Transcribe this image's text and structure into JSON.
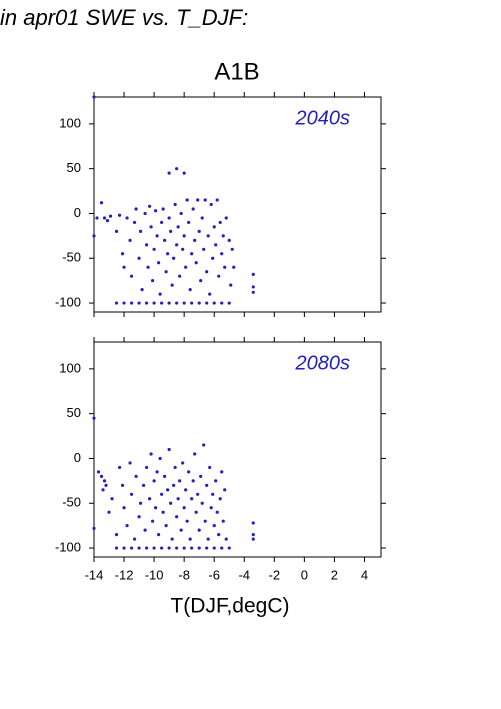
{
  "header": "in apr01 SWE vs. T_DJF:",
  "chart_data": [
    {
      "type": "scatter",
      "title": "A1B",
      "annotation": "2040s",
      "color": "#2222bb",
      "xlim": [
        -14,
        5.1
      ],
      "ylim": [
        -110,
        130
      ],
      "xticks": [
        -14,
        -12,
        -10,
        -8,
        -6,
        -4,
        -2,
        0,
        2,
        4
      ],
      "xtick_labels": false,
      "yticks": [
        -100,
        -50,
        0,
        50,
        100
      ],
      "x": [
        -14,
        -13.8,
        -14,
        -13.5,
        -13.3,
        -13.1,
        -12.9,
        -12.5,
        -12.3,
        -12.1,
        -12,
        -11.8,
        -11.6,
        -11.5,
        -11.3,
        -11.2,
        -11,
        -10.9,
        -10.8,
        -10.6,
        -10.5,
        -10.4,
        -10.3,
        -10.2,
        -10.1,
        -10,
        -9.9,
        -9.8,
        -9.7,
        -9.6,
        -9.5,
        -9.4,
        -9.3,
        -9.2,
        -9.1,
        -9,
        -9,
        -8.9,
        -8.8,
        -8.7,
        -8.6,
        -8.5,
        -8.5,
        -8.4,
        -8.3,
        -8.2,
        -8.1,
        -8,
        -8,
        -7.9,
        -7.8,
        -7.7,
        -7.6,
        -7.5,
        -7.4,
        -7.3,
        -7.2,
        -7.1,
        -7,
        -6.9,
        -6.8,
        -6.7,
        -6.6,
        -6.5,
        -6.4,
        -6.3,
        -6.2,
        -6.1,
        -6,
        -5.9,
        -5.8,
        -5.7,
        -5.6,
        -5.5,
        -5.4,
        -5.3,
        -5.2,
        -5,
        -4.9,
        -4.8,
        -4.7,
        -3.4,
        -3.4,
        -3.4,
        -12.5,
        -12,
        -11.5,
        -11,
        -10.5,
        -10,
        -9.5,
        -9,
        -8.5,
        -8,
        -7.5,
        -7,
        -6.5,
        -6,
        -5.5,
        -5
      ],
      "values": [
        130,
        -5,
        -25,
        12,
        -5,
        -8,
        -3,
        -20,
        -2,
        -45,
        -60,
        -5,
        -30,
        -70,
        -10,
        5,
        -50,
        -20,
        -85,
        0,
        -35,
        -60,
        8,
        -15,
        -75,
        -40,
        3,
        -25,
        -55,
        -90,
        -10,
        5,
        -30,
        -65,
        -45,
        45,
        -5,
        -20,
        -80,
        -50,
        10,
        50,
        -35,
        -15,
        -70,
        0,
        -40,
        45,
        -25,
        -60,
        15,
        -10,
        -85,
        -45,
        5,
        -30,
        -55,
        15,
        -20,
        -75,
        -5,
        -40,
        15,
        -65,
        -25,
        -90,
        10,
        -50,
        -15,
        -35,
        15,
        -70,
        -10,
        -45,
        -25,
        -60,
        -5,
        -30,
        -80,
        -40,
        -60,
        -68,
        -82,
        -88,
        -100,
        -100,
        -100,
        -100,
        -100,
        -100,
        -100,
        -100,
        -100,
        -100,
        -100,
        -100,
        -100,
        -100,
        -100,
        -100
      ]
    },
    {
      "type": "scatter",
      "annotation": "2080s",
      "color": "#2222bb",
      "xlabel": "T(DJF,degC)",
      "xlim": [
        -14,
        5.1
      ],
      "ylim": [
        -110,
        130
      ],
      "xticks": [
        -14,
        -12,
        -10,
        -8,
        -6,
        -4,
        -2,
        0,
        2,
        4
      ],
      "xtick_labels": true,
      "yticks": [
        -100,
        -50,
        0,
        50,
        100
      ],
      "x": [
        -14,
        -14,
        -13.7,
        -13.5,
        -13.4,
        -13.3,
        -13.2,
        -13,
        -12.8,
        -12.5,
        -12.3,
        -12.1,
        -12,
        -11.8,
        -11.6,
        -11.5,
        -11.3,
        -11.2,
        -11,
        -10.9,
        -10.7,
        -10.6,
        -10.5,
        -10.3,
        -10.2,
        -10.1,
        -10,
        -9.9,
        -9.8,
        -9.7,
        -9.6,
        -9.5,
        -9.4,
        -9.3,
        -9.2,
        -9.1,
        -9,
        -8.9,
        -8.8,
        -8.7,
        -8.6,
        -8.5,
        -8.4,
        -8.3,
        -8.2,
        -8.1,
        -8,
        -7.9,
        -7.8,
        -7.7,
        -7.6,
        -7.5,
        -7.4,
        -7.3,
        -7.2,
        -7.1,
        -7,
        -6.9,
        -6.8,
        -6.7,
        -6.6,
        -6.5,
        -6.4,
        -6.3,
        -6.2,
        -6.1,
        -6,
        -5.9,
        -5.8,
        -5.7,
        -5.6,
        -5.5,
        -5.4,
        -5.3,
        -5.2,
        -3.4,
        -3.4,
        -3.4,
        -12.5,
        -12,
        -11.5,
        -11,
        -10.5,
        -10,
        -9.5,
        -9,
        -8.5,
        -8,
        -7.5,
        -7,
        -6.5,
        -6,
        -5.5,
        -5
      ],
      "values": [
        45,
        -78,
        -15,
        -20,
        -35,
        -25,
        -30,
        -60,
        -45,
        -85,
        -10,
        -30,
        -55,
        -75,
        -5,
        -40,
        -90,
        -20,
        -65,
        -50,
        -30,
        -80,
        -10,
        -45,
        5,
        -70,
        -25,
        -55,
        -15,
        -85,
        0,
        -40,
        -60,
        -20,
        -75,
        -35,
        10,
        -50,
        -90,
        -30,
        -10,
        -65,
        -45,
        -25,
        -80,
        -5,
        -55,
        -35,
        -70,
        -15,
        -90,
        -45,
        -25,
        5,
        -60,
        -40,
        -80,
        -20,
        -50,
        15,
        -70,
        -30,
        -90,
        -10,
        -55,
        -40,
        -75,
        -25,
        -60,
        -85,
        -45,
        -15,
        -70,
        -35,
        -90,
        -72,
        -85,
        -90,
        -100,
        -100,
        -100,
        -100,
        -100,
        -100,
        -100,
        -100,
        -100,
        -100,
        -100,
        -100,
        -100,
        -100,
        -100,
        -100
      ]
    }
  ]
}
